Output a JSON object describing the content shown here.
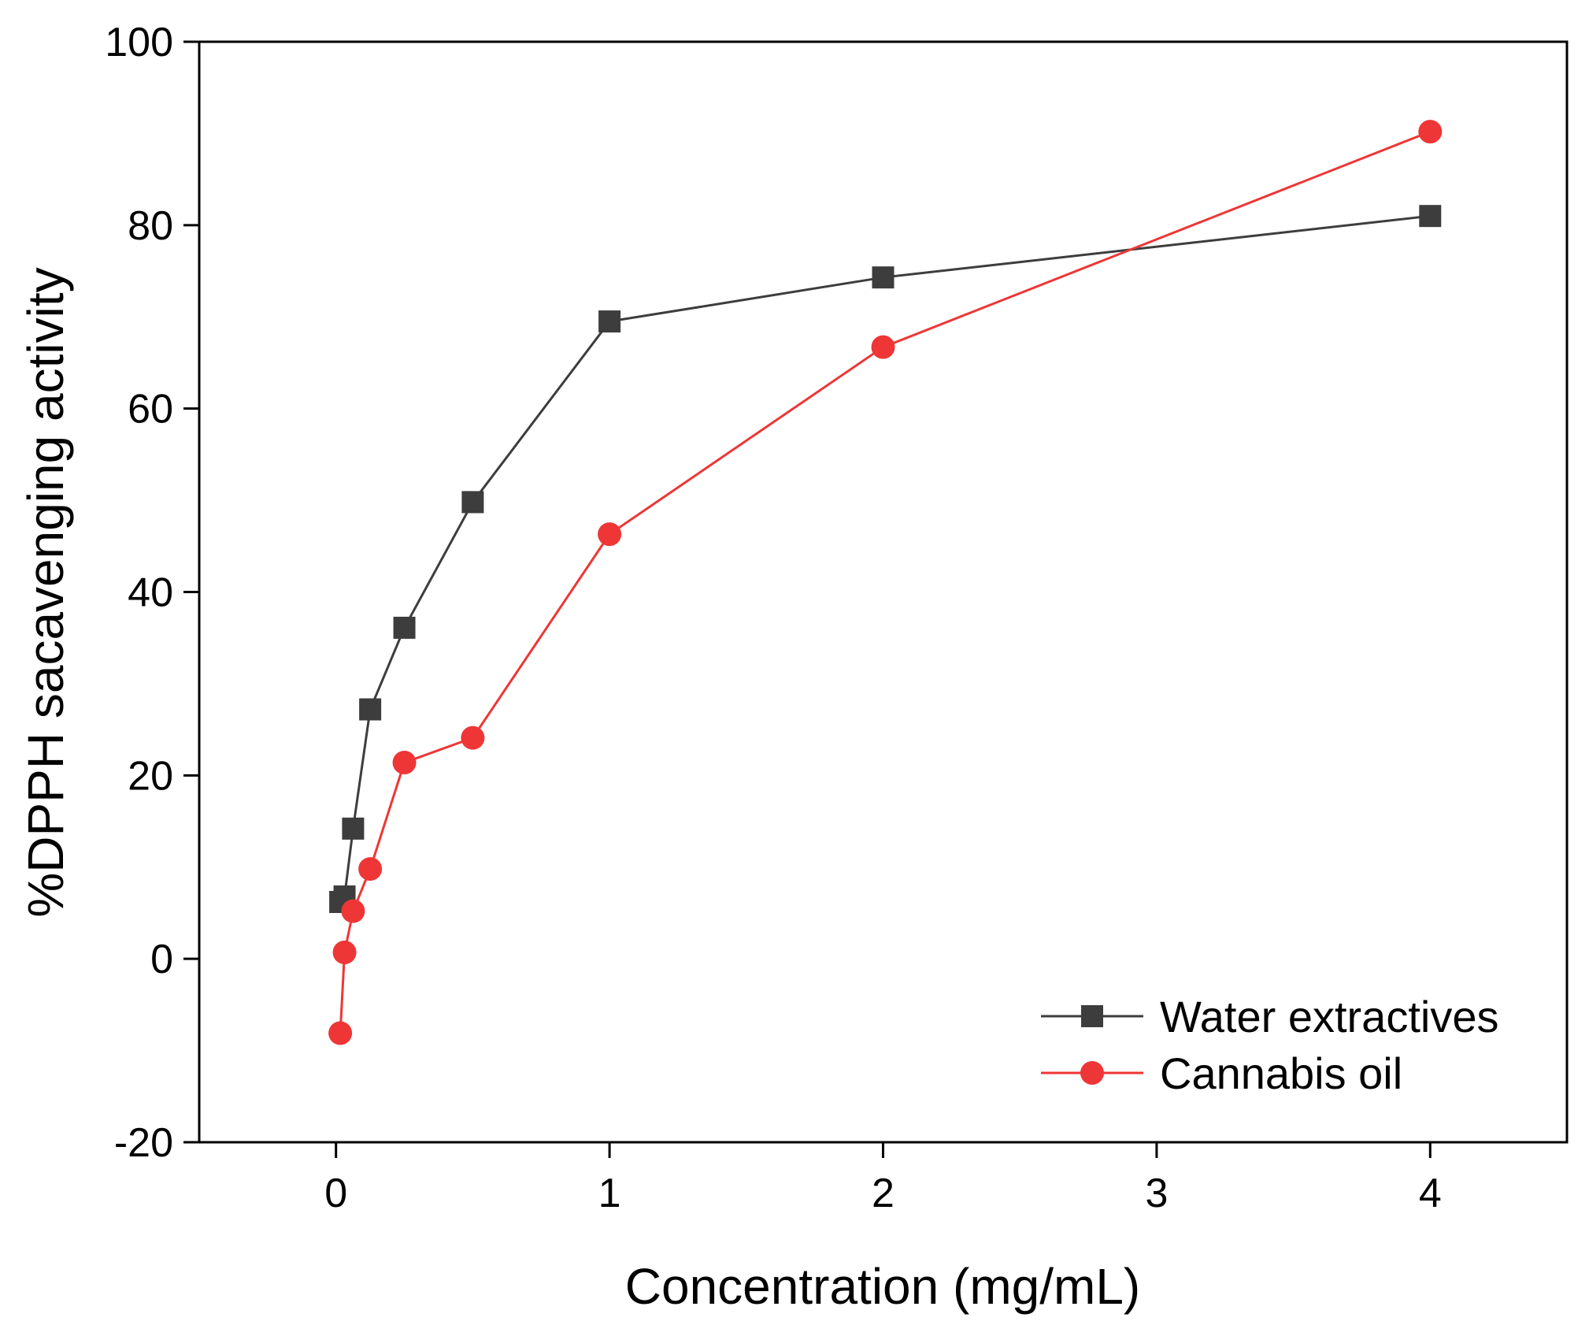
{
  "chart_data": {
    "type": "line",
    "title": "",
    "xlabel": "Concentration (mg/mL)",
    "ylabel": "%DPPH sacavenging activity",
    "xlim": [
      -0.5,
      4.5
    ],
    "ylim": [
      -20,
      100
    ],
    "xticks": [
      0,
      1,
      2,
      3,
      4
    ],
    "yticks": [
      -20,
      0,
      20,
      40,
      60,
      80,
      100
    ],
    "xtick_labels": [
      "0",
      "1",
      "2",
      "3",
      "4"
    ],
    "ytick_labels": [
      "-20",
      "0",
      "20",
      "40",
      "60",
      "80",
      "100"
    ],
    "grid": false,
    "legend_position": "bottom-right",
    "series": [
      {
        "name": "Water extractives",
        "color": "#3d3d3d",
        "marker": "square",
        "x": [
          0.0156,
          0.03125,
          0.0625,
          0.125,
          0.25,
          0.5,
          1,
          2,
          4
        ],
        "y": [
          6.2,
          6.8,
          14.2,
          27.2,
          36.1,
          49.8,
          69.5,
          74.3,
          81.0
        ]
      },
      {
        "name": "Cannabis oil",
        "color": "#ee3636",
        "marker": "circle",
        "x": [
          0.0156,
          0.03125,
          0.0625,
          0.125,
          0.25,
          0.5,
          1,
          2,
          4
        ],
        "y": [
          -8.1,
          0.7,
          5.2,
          9.8,
          21.4,
          24.1,
          46.3,
          66.7,
          90.2
        ]
      }
    ]
  }
}
